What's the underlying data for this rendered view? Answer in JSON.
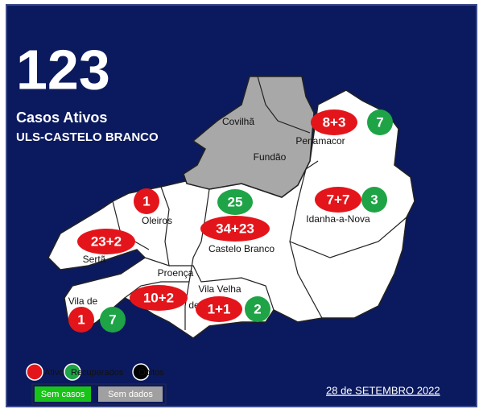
{
  "header": {
    "total": "123",
    "title": "Casos Ativos",
    "subtitle": "ULS-CASTELO BRANCO"
  },
  "regions": [
    {
      "label": "Covilhã"
    },
    {
      "label": "Fundão"
    },
    {
      "label": "Penamacor"
    },
    {
      "label": "Oleiros"
    },
    {
      "label": "Castelo Branco"
    },
    {
      "label": "Idanha-a-Nova"
    },
    {
      "label": "Sertã"
    },
    {
      "label": "Proença"
    },
    {
      "label": "Vila Velha"
    },
    {
      "label": "de"
    },
    {
      "label": "Vila de"
    }
  ],
  "badges": [
    {
      "text": "8+3",
      "color": "#e3151b"
    },
    {
      "text": "7",
      "color": "#1ea446"
    },
    {
      "text": "1",
      "color": "#e3151b"
    },
    {
      "text": "25",
      "color": "#1ea446"
    },
    {
      "text": "34+23",
      "color": "#e3151b"
    },
    {
      "text": "7+7",
      "color": "#e3151b"
    },
    {
      "text": "3",
      "color": "#1ea446"
    },
    {
      "text": "23+2",
      "color": "#e3151b"
    },
    {
      "text": "10+2",
      "color": "#e3151b"
    },
    {
      "text": "1+1",
      "color": "#e3151b"
    },
    {
      "text": "2",
      "color": "#1ea446"
    },
    {
      "text": "1",
      "color": "#e3151b"
    },
    {
      "text": "7",
      "color": "#1ea446"
    }
  ],
  "legend": [
    {
      "label": "Ativos",
      "color": "#e3151b"
    },
    {
      "label": "Recuperados",
      "color": "#1ea446"
    },
    {
      "label": "Óbitos",
      "color": "#000000"
    }
  ],
  "date": "28 de SETEMBRO 2022",
  "buttons": [
    {
      "label": "Sem casos",
      "color": "#18c418"
    },
    {
      "label": "Sem dados",
      "color": "#a0a0a0"
    }
  ]
}
